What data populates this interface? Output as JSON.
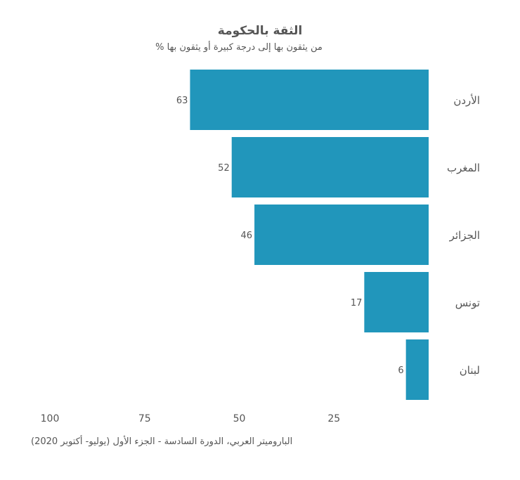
{
  "title": "الثقة بالحكومة",
  "subtitle": "% من يثقون بها إلى درجة كبيرة أو يثقون بها",
  "source": "الباروميتر العربي، الدورة السادسة - الجزء الأول (يوليو- أكتوبر 2020)",
  "colors": {
    "bar": "#2196bb",
    "text": "#555555"
  },
  "chart_data": {
    "type": "bar",
    "orientation": "horizontal-reversed",
    "categories": [
      "الأردن",
      "المغرب",
      "الجزائر",
      "تونس",
      "لبنان"
    ],
    "values": [
      63,
      52,
      46,
      17,
      6
    ],
    "xlim": [
      0,
      100
    ],
    "xticks": [
      100,
      75,
      50,
      25
    ],
    "grid": false,
    "legend": "none"
  }
}
